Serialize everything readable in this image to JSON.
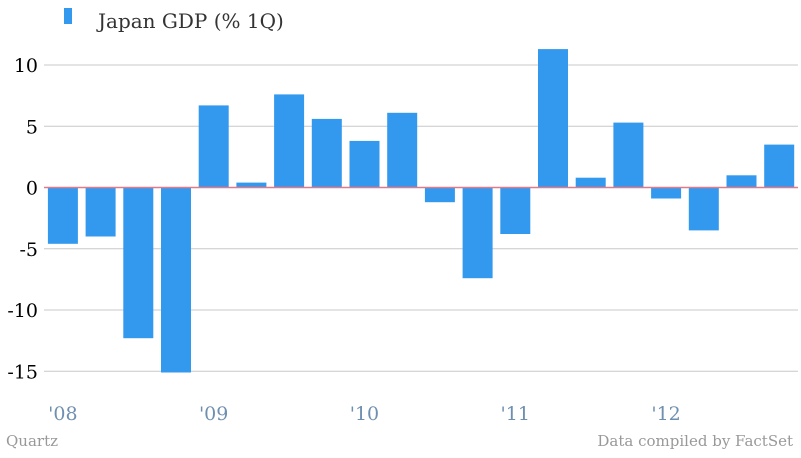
{
  "footer": {
    "source_left": "Quartz",
    "source_right": "Data compiled by FactSet"
  },
  "colors": {
    "bar": "#3399ee",
    "grid": "#c8c8c8",
    "zero_line": "#e07a8a",
    "xtick": "#6f8fb0"
  },
  "chart_data": {
    "type": "bar",
    "title": "",
    "xlabel": "",
    "ylabel": "",
    "ylim": [
      -17,
      12
    ],
    "yticks": [
      10,
      5,
      0,
      -5,
      -10,
      -15
    ],
    "ytick_labels": [
      "10",
      "5",
      "0",
      "-5",
      "-10",
      "-15"
    ],
    "grid": true,
    "legend_position": "top-left",
    "categories": [
      "1Q08",
      "2Q08",
      "3Q08",
      "4Q08",
      "1Q09",
      "2Q09",
      "3Q09",
      "4Q09",
      "1Q10",
      "2Q10",
      "3Q10",
      "4Q10",
      "1Q11",
      "2Q11",
      "3Q11",
      "4Q11",
      "1Q12",
      "2Q12",
      "3Q12",
      "4Q12"
    ],
    "x_ticks": [
      {
        "index": 0,
        "label": "'08"
      },
      {
        "index": 4,
        "label": "'09"
      },
      {
        "index": 8,
        "label": "'10"
      },
      {
        "index": 12,
        "label": "'11"
      },
      {
        "index": 16,
        "label": "'12"
      }
    ],
    "series": [
      {
        "name": "Japan GDP (% 1Q)",
        "values": [
          -4.6,
          -4.0,
          -12.3,
          -15.1,
          6.7,
          0.4,
          7.6,
          5.6,
          3.8,
          6.1,
          -1.2,
          -7.4,
          -3.8,
          11.3,
          0.8,
          5.3,
          -0.9,
          -3.5,
          1.0,
          3.5
        ]
      }
    ]
  }
}
